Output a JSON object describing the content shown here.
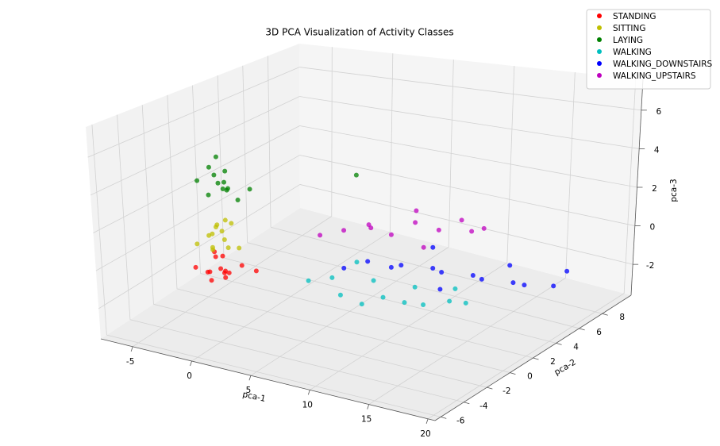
{
  "chart_data": {
    "type": "scatter3d",
    "title": "3D PCA Visualization of Activity Classes",
    "xlabel": "pca-1",
    "ylabel": "pca-2",
    "zlabel": "pca-3",
    "xlim": [
      -7.7,
      20.6
    ],
    "ylim": [
      -6.5,
      10.5
    ],
    "zlim": [
      -3.6,
      7.6
    ],
    "xticks": [
      -5,
      0,
      5,
      10,
      15,
      20
    ],
    "yticks": [
      -6,
      -4,
      -2,
      0,
      2,
      4,
      6,
      8
    ],
    "zticks": [
      -2,
      0,
      2,
      4,
      6
    ],
    "grid": true,
    "legend": "upper right",
    "series": [
      {
        "name": "STANDING",
        "color": "#ff0000",
        "x": [
          -5.5,
          -5,
          -4.8,
          -4.5,
          -4.2,
          -4,
          -3.8,
          -3.5,
          -3.2,
          -5.2,
          -4.6,
          -3.9,
          -2.5,
          -1.8
        ],
        "y": [
          -0.5,
          0,
          0.5,
          -0.2,
          0.3,
          -0.8,
          0.6,
          0,
          -0.3,
          0.8,
          1,
          0.2,
          0.4,
          0.9
        ],
        "z": [
          -1.8,
          -2.2,
          -1.5,
          -2.5,
          -2,
          -1.7,
          -2.3,
          -1.9,
          -2.1,
          -1.4,
          -2.6,
          -1.2,
          -1.6,
          -2
        ]
      },
      {
        "name": "SITTING",
        "color": "#bfbf00",
        "x": [
          -5.4,
          -5,
          -4.7,
          -4.4,
          -4.1,
          -3.9,
          -3.6,
          -3.3,
          -5.1,
          -4.5,
          -3.8,
          -4.2,
          -2.8
        ],
        "y": [
          -0.4,
          0.2,
          0.6,
          -0.1,
          0.4,
          -0.6,
          0.7,
          0.1,
          0.9,
          1.1,
          0.3,
          -0.3,
          0.5
        ],
        "z": [
          -0.5,
          -0.2,
          0.3,
          -0.8,
          0.1,
          -0.4,
          0.5,
          -0.6,
          0,
          0.4,
          -0.3,
          0.2,
          -0.7
        ]
      },
      {
        "name": "LAYING",
        "color": "#008000",
        "x": [
          -5,
          -4.6,
          -4.3,
          -4,
          -3.7,
          -3.4,
          -3.1,
          -4.8,
          -4.2,
          -3.6,
          -3.9,
          -2.8,
          -2.5,
          4.5
        ],
        "y": [
          -0.6,
          0,
          0.4,
          -0.2,
          0.6,
          0,
          -0.4,
          0.8,
          1,
          0.3,
          -0.8,
          0.5,
          1.2,
          3
        ],
        "z": [
          3.2,
          3.8,
          2.8,
          3.5,
          2.5,
          3.1,
          2.9,
          4.1,
          2.2,
          3.6,
          2.6,
          2,
          2.4,
          3.4
        ]
      },
      {
        "name": "WALKING",
        "color": "#00bfbf",
        "x": [
          2,
          3.5,
          5,
          6.5,
          8,
          9.5,
          11,
          12.5,
          14,
          4,
          7,
          10,
          13
        ],
        "y": [
          1.5,
          2,
          1.2,
          2.5,
          1.8,
          3,
          2.2,
          3.4,
          2.8,
          3.6,
          1,
          1.6,
          2.4
        ],
        "z": [
          -2.2,
          -2,
          -2.4,
          -1.9,
          -2.3,
          -2,
          -2.4,
          -1.8,
          -2.1,
          -1.7,
          -2.5,
          -2.2,
          -2
        ]
      },
      {
        "name": "WALKING_DOWNSTAIRS",
        "color": "#0000ff",
        "x": [
          4,
          5.5,
          7,
          8.5,
          10,
          11.5,
          13,
          14.5,
          16,
          17.5,
          19,
          9,
          12,
          15,
          19.5
        ],
        "y": [
          2.5,
          3,
          3.5,
          2.8,
          4,
          3.2,
          4.4,
          3.6,
          4.8,
          4.2,
          5.2,
          5,
          2.6,
          5.5,
          5.8
        ],
        "z": [
          -1.6,
          -1.2,
          -1.5,
          -0.9,
          -1.3,
          -1,
          -1.4,
          -1.1,
          -1.5,
          -1.2,
          -1.4,
          -0.7,
          -1.6,
          -1,
          -0.8
        ]
      },
      {
        "name": "WALKING_UPSTAIRS",
        "color": "#bf00bf",
        "x": [
          1,
          2.5,
          4,
          5.5,
          7,
          8.5,
          10,
          11.5,
          3,
          6,
          9,
          12
        ],
        "y": [
          3.5,
          4,
          4.6,
          5,
          5.5,
          6,
          6.4,
          6.8,
          5.8,
          6.6,
          4.2,
          5.2
        ],
        "z": [
          -0.6,
          -0.3,
          0,
          -0.5,
          0.2,
          -0.2,
          0.4,
          0,
          -0.8,
          0.3,
          -0.4,
          0.5
        ]
      }
    ]
  }
}
